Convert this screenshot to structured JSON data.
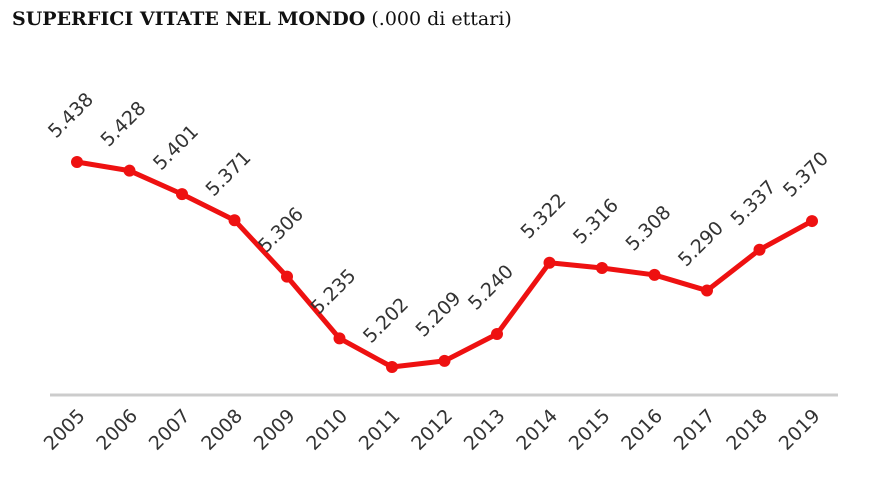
{
  "title": "SUPERFICI VITATE NEL MONDO",
  "subtitle": "(.000 di ettari)",
  "chart_data": {
    "type": "line",
    "title": "SUPERFICI VITATE NEL MONDO",
    "subtitle": "(.000 di ettari)",
    "xlabel": "",
    "ylabel": "",
    "grid": false,
    "legend": "none",
    "ylim": [
      5150,
      5500
    ],
    "x": [
      "2005",
      "2006",
      "2007",
      "2008",
      "2009",
      "2010",
      "2011",
      "2012",
      "2013",
      "2014",
      "2015",
      "2016",
      "2017",
      "2018",
      "2019"
    ],
    "series": [
      {
        "values": [
          5438,
          5428,
          5401,
          5371,
          5306,
          5235,
          5202,
          5209,
          5240,
          5322,
          5316,
          5308,
          5290,
          5337,
          5370
        ],
        "labels": [
          "5.438",
          "5.428",
          "5.401",
          "5.371",
          "5.306",
          "5.235",
          "5.202",
          "5.209",
          "5.240",
          "5.322",
          "5.316",
          "5.308",
          "5.290",
          "5.337",
          "5.370"
        ],
        "color": "#ee1111"
      }
    ],
    "baseline_color": "#cccccc"
  }
}
